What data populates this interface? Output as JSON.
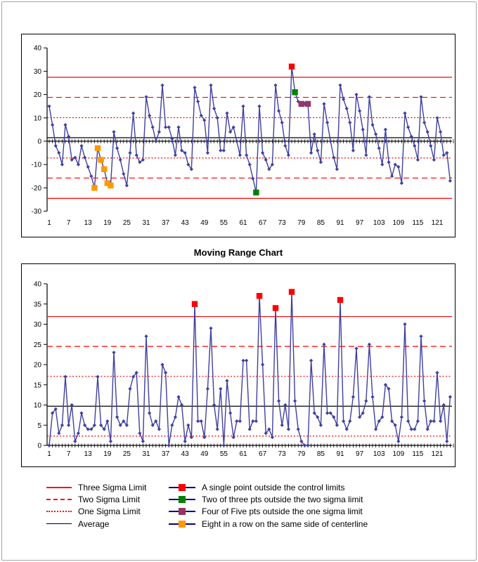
{
  "page": {
    "background": "#FFFFFF",
    "border_color": "#A6A6A6"
  },
  "chart_data": [
    {
      "id": "individuals",
      "type": "line",
      "title": "",
      "series_color": "#3F3FA0",
      "ylim": [
        -30,
        40
      ],
      "y_ticks": [
        40,
        30,
        20,
        10,
        0,
        -10,
        -20,
        -30
      ],
      "x_tick_labels": [
        "1",
        "7",
        "13",
        "19",
        "25",
        "31",
        "37",
        "43",
        "49",
        "55",
        "61",
        "67",
        "73",
        "79",
        "85",
        "91",
        "97",
        "103",
        "109",
        "115",
        "121"
      ],
      "x_label_step": 6,
      "limits": [
        {
          "name": "three-sigma-upper",
          "value": 27.4,
          "style": "solid",
          "color": "#FF0000"
        },
        {
          "name": "two-sigma-upper",
          "value": 18.8,
          "style": "dash",
          "color": "#FF0000"
        },
        {
          "name": "one-sigma-upper",
          "value": 10.1,
          "style": "dot",
          "color": "#FF0000"
        },
        {
          "name": "average",
          "value": 1.5,
          "style": "solid",
          "color": "#000000"
        },
        {
          "name": "one-sigma-lower",
          "value": -7.2,
          "style": "dot",
          "color": "#FF0000"
        },
        {
          "name": "two-sigma-lower",
          "value": -15.8,
          "style": "dash",
          "color": "#FF0000"
        },
        {
          "name": "three-sigma-lower",
          "value": -24.5,
          "style": "solid",
          "color": "#FF0000"
        }
      ],
      "values": [
        15,
        7,
        -2,
        -5,
        -10,
        7,
        2,
        -8,
        -7,
        -10,
        -2,
        -7,
        -11,
        -15,
        -20,
        -3,
        -8,
        -12,
        -18,
        -19,
        4,
        -3,
        -8,
        -14,
        -19,
        -5,
        12,
        -6,
        -9,
        -8,
        19,
        11,
        6,
        0,
        4,
        24,
        6,
        6,
        1,
        -6,
        6,
        -4,
        -5,
        -10,
        -12,
        23,
        17,
        11,
        9,
        -5,
        24,
        14,
        10,
        -4,
        -4,
        12,
        4,
        6,
        0,
        -6,
        15,
        -6,
        -10,
        -16,
        -22,
        15,
        -5,
        -8,
        -12,
        -10,
        24,
        13,
        8,
        -2,
        -6,
        32,
        21,
        17,
        16,
        16,
        16,
        -5,
        3,
        -4,
        -9,
        16,
        8,
        0,
        -7,
        -12,
        24,
        18,
        14,
        8,
        -4,
        20,
        13,
        5,
        -6,
        19,
        7,
        3,
        -3,
        -10,
        5,
        -9,
        -15,
        -10,
        -11,
        -18,
        12,
        6,
        2,
        -2,
        -8,
        19,
        8,
        4,
        -2,
        -8,
        10,
        4,
        -6,
        -5,
        -17
      ],
      "special_points": [
        {
          "x": 15,
          "rule": "eight-in-row",
          "color": "#FF9900"
        },
        {
          "x": 16,
          "rule": "eight-in-row",
          "color": "#FF9900"
        },
        {
          "x": 17,
          "rule": "eight-in-row",
          "color": "#FF9900"
        },
        {
          "x": 18,
          "rule": "eight-in-row",
          "color": "#FF9900"
        },
        {
          "x": 19,
          "rule": "eight-in-row",
          "color": "#FF9900"
        },
        {
          "x": 20,
          "rule": "eight-in-row",
          "color": "#FF9900"
        },
        {
          "x": 65,
          "rule": "two-of-three",
          "color": "#008000"
        },
        {
          "x": 76,
          "rule": "single-point-outside",
          "color": "#FF0000"
        },
        {
          "x": 77,
          "rule": "two-of-three",
          "color": "#008000"
        },
        {
          "x": 79,
          "rule": "four-of-five",
          "color": "#993366"
        },
        {
          "x": 81,
          "rule": "four-of-five",
          "color": "#993366"
        }
      ]
    },
    {
      "id": "moving-range",
      "type": "line",
      "title": "Moving Range Chart",
      "series_color": "#3F3FA0",
      "ylim": [
        0,
        40
      ],
      "y_ticks": [
        40,
        35,
        30,
        25,
        20,
        15,
        10,
        5,
        0
      ],
      "x_tick_labels": [
        "1",
        "7",
        "13",
        "19",
        "25",
        "31",
        "37",
        "43",
        "49",
        "55",
        "61",
        "67",
        "73",
        "79",
        "85",
        "91",
        "97",
        "103",
        "109",
        "115",
        "121"
      ],
      "x_label_step": 6,
      "limits": [
        {
          "name": "three-sigma-upper",
          "value": 31.9,
          "style": "solid",
          "color": "#FF0000"
        },
        {
          "name": "two-sigma-upper",
          "value": 24.5,
          "style": "dash",
          "color": "#FF0000"
        },
        {
          "name": "one-sigma-upper",
          "value": 17.1,
          "style": "dot",
          "color": "#FF0000"
        },
        {
          "name": "average",
          "value": 9.7,
          "style": "solid",
          "color": "#000000"
        },
        {
          "name": "one-sigma-lower",
          "value": 2.3,
          "style": "dot",
          "color": "#FF0000"
        }
      ],
      "values": [
        0,
        8,
        9,
        3,
        5,
        17,
        5,
        10,
        1,
        3,
        8,
        5,
        4,
        4,
        5,
        17,
        5,
        4,
        6,
        1,
        23,
        7,
        5,
        6,
        5,
        14,
        17,
        18,
        3,
        1,
        27,
        8,
        5,
        6,
        4,
        20,
        18,
        0,
        5,
        7,
        12,
        10,
        1,
        5,
        2,
        35,
        6,
        6,
        2,
        14,
        29,
        10,
        4,
        14,
        0,
        16,
        8,
        2,
        6,
        6,
        21,
        21,
        4,
        6,
        6,
        37,
        20,
        3,
        4,
        2,
        34,
        11,
        5,
        10,
        4,
        38,
        11,
        4,
        1,
        0,
        0,
        21,
        8,
        7,
        5,
        25,
        8,
        8,
        7,
        5,
        36,
        6,
        4,
        6,
        12,
        24,
        7,
        8,
        11,
        25,
        12,
        4,
        6,
        7,
        15,
        14,
        6,
        5,
        1,
        7,
        30,
        6,
        4,
        4,
        6,
        27,
        11,
        4,
        6,
        6,
        18,
        6,
        10,
        1,
        12
      ],
      "special_points": [
        {
          "x": 46,
          "rule": "single-point-outside",
          "color": "#FF0000"
        },
        {
          "x": 66,
          "rule": "single-point-outside",
          "color": "#FF0000"
        },
        {
          "x": 71,
          "rule": "single-point-outside",
          "color": "#FF0000"
        },
        {
          "x": 76,
          "rule": "single-point-outside",
          "color": "#FF0000"
        },
        {
          "x": 91,
          "rule": "single-point-outside",
          "color": "#FF0000"
        }
      ]
    }
  ],
  "legend": {
    "marker_line_color": "#000080",
    "lines": [
      {
        "label": "Three Sigma Limit",
        "style": "solid",
        "color": "#FF0000"
      },
      {
        "label": "Two Sigma Limit",
        "style": "dash",
        "color": "#FF0000"
      },
      {
        "label": "One Sigma Limit",
        "style": "dot",
        "color": "#FF0000"
      },
      {
        "label": "Average",
        "style": "solid",
        "color": "#000000"
      }
    ],
    "markers": [
      {
        "label": "A single point outside the control limits",
        "color": "#FF0000"
      },
      {
        "label": "Two of three pts outside the two sigma limit",
        "color": "#008000"
      },
      {
        "label": "Four of Five pts outside the one sigma limit",
        "color": "#993366"
      },
      {
        "label": "Eight in a row on the same side of centerline",
        "color": "#FF9900"
      }
    ]
  }
}
